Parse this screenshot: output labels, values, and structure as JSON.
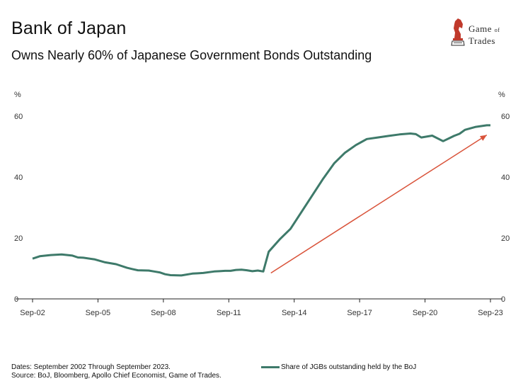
{
  "header": {
    "title": "Bank of Japan",
    "subtitle": "Owns Nearly 60% of Japanese Government Bonds Outstanding"
  },
  "logo": {
    "line1": "Game",
    "line1_small": "of",
    "line2": "Trades"
  },
  "footer": {
    "line1": "Dates: September 2002 Through September 2023.",
    "line2": "Source: BoJ, Bloomberg, Apollo Chief Economist, Game of Trades."
  },
  "colors": {
    "series": "#3e7a6a",
    "arrow": "#d9533a",
    "logo_accent": "#c0392b"
  },
  "chart_data": {
    "type": "line",
    "y_unit_left": "%",
    "y_unit_right": "%",
    "ylim": [
      0,
      60
    ],
    "yticks": [
      0,
      20,
      40,
      60
    ],
    "x_tick_labels": [
      "Sep-02",
      "Sep-05",
      "Sep-08",
      "Sep-11",
      "Sep-14",
      "Sep-17",
      "Sep-20",
      "Sep-23"
    ],
    "x_tick_years": [
      2002.67,
      2005.67,
      2008.67,
      2011.67,
      2014.67,
      2017.67,
      2020.67,
      2023.67
    ],
    "xlim": [
      2002.67,
      2023.67
    ],
    "grid": false,
    "legend_position": "bottom",
    "series": [
      {
        "name": "Share of JGBs outstanding held by the BoJ",
        "x": [
          2002.67,
          2003.0,
          2003.5,
          2004.0,
          2004.5,
          2004.75,
          2005.0,
          2005.5,
          2006.0,
          2006.5,
          2007.0,
          2007.25,
          2007.5,
          2008.0,
          2008.25,
          2008.5,
          2008.75,
          2009.0,
          2009.5,
          2010.0,
          2010.25,
          2010.5,
          2011.0,
          2011.25,
          2011.5,
          2011.75,
          2012.0,
          2012.25,
          2012.5,
          2012.75,
          2013.0,
          2013.25,
          2013.5,
          2014.0,
          2014.5,
          2015.0,
          2015.5,
          2016.0,
          2016.5,
          2017.0,
          2017.5,
          2018.0,
          2018.5,
          2019.0,
          2019.5,
          2020.0,
          2020.25,
          2020.5,
          2021.0,
          2021.5,
          2022.0,
          2022.25,
          2022.5,
          2023.0,
          2023.5,
          2023.67
        ],
        "y": [
          13.2,
          14.0,
          14.4,
          14.6,
          14.2,
          13.6,
          13.5,
          13.0,
          12.0,
          11.4,
          10.2,
          9.8,
          9.4,
          9.3,
          9.0,
          8.7,
          8.1,
          7.8,
          7.7,
          8.3,
          8.4,
          8.5,
          9.0,
          9.1,
          9.2,
          9.2,
          9.5,
          9.6,
          9.4,
          9.1,
          9.3,
          9.0,
          15.5,
          19.5,
          23.0,
          28.5,
          34.0,
          39.5,
          44.5,
          48.0,
          50.5,
          52.5,
          53.0,
          53.5,
          54.0,
          54.3,
          54.1,
          53.0,
          53.6,
          51.8,
          53.5,
          54.2,
          55.5,
          56.5,
          57.0,
          57.0
        ]
      }
    ],
    "arrow_annotation": {
      "from": {
        "x": 2013.6,
        "y": 8.5
      },
      "to": {
        "x": 2023.5,
        "y": 53.8
      }
    }
  }
}
